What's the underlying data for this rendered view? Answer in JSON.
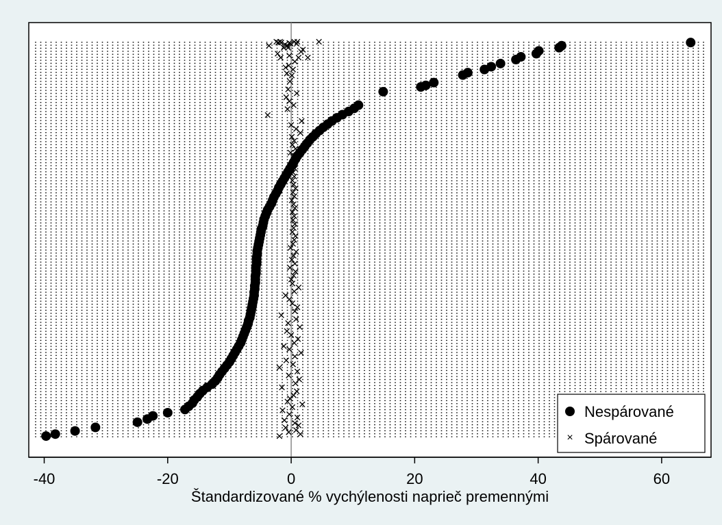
{
  "chart_data": {
    "type": "scatter",
    "title": "",
    "xlabel": "Štandardizované % vychýlenosti naprieč premennými",
    "ylabel": "",
    "xlim": [
      -42.5,
      68
    ],
    "ylim": [
      0,
      1
    ],
    "x_ticks": [
      -40,
      -20,
      0,
      20,
      40,
      60
    ],
    "x_tick_labels": [
      "-40",
      "-20",
      "0",
      "20",
      "40",
      "60"
    ],
    "reference_line_x": 0,
    "grid": "dotted vertical lines",
    "legend_position": "bottom-right",
    "series": [
      {
        "name": "Nespárované",
        "marker": "filled-circle",
        "color": "#000000",
        "x": [
          -39.7,
          -38.2,
          -35,
          -31.7,
          -24.9,
          -23.3,
          -22.4,
          -20,
          -17.2,
          -16.6,
          -16,
          -15.7,
          -15.2,
          -14.8,
          -14.3,
          -13.6,
          -12.8,
          -12.3,
          -11.9,
          -11.6,
          -11.2,
          -10.8,
          -10.4,
          -10,
          -9.7,
          -9.4,
          -9.1,
          -8.8,
          -8.5,
          -8.2,
          -8,
          -7.8,
          -7.6,
          -7.4,
          -7.2,
          -7,
          -6.9,
          -6.7,
          -6.6,
          -6.5,
          -6.4,
          -6.3,
          -6.2,
          -6.1,
          -6,
          -6,
          -5.9,
          -5.9,
          -5.8,
          -5.8,
          -5.8,
          -5.7,
          -5.7,
          -5.7,
          -5.6,
          -5.6,
          -5.6,
          -5.5,
          -5.5,
          -5.4,
          -5.3,
          -5.2,
          -5.1,
          -5,
          -4.9,
          -4.8,
          -4.6,
          -4.5,
          -4.4,
          -4.2,
          -4,
          -3.8,
          -3.5,
          -3.2,
          -3,
          -2.8,
          -2.5,
          -2.2,
          -2,
          -1.7,
          -1.4,
          -1.1,
          -0.8,
          -0.5,
          -0.2,
          0.1,
          0.4,
          0.7,
          1,
          1.4,
          1.8,
          2.2,
          2.6,
          3,
          3.5,
          4,
          4.6,
          5.2,
          5.9,
          6.6,
          7.4,
          8.3,
          9.3,
          10.2,
          10.9,
          14.9,
          21,
          21.8,
          23.1,
          27.8,
          28.6,
          31.3,
          32.4,
          33.9,
          36.4,
          37.2,
          39.7,
          40.1,
          43.4,
          43.8,
          64.7
        ],
        "y": [
          0.005,
          0.01,
          0.018,
          0.027,
          0.04,
          0.048,
          0.056,
          0.064,
          0.072,
          0.08,
          0.088,
          0.096,
          0.104,
          0.112,
          0.12,
          0.128,
          0.136,
          0.144,
          0.152,
          0.16,
          0.168,
          0.176,
          0.184,
          0.192,
          0.2,
          0.208,
          0.216,
          0.224,
          0.232,
          0.24,
          0.248,
          0.256,
          0.264,
          0.272,
          0.28,
          0.288,
          0.296,
          0.304,
          0.312,
          0.32,
          0.328,
          0.336,
          0.344,
          0.352,
          0.36,
          0.368,
          0.376,
          0.384,
          0.392,
          0.4,
          0.408,
          0.416,
          0.424,
          0.432,
          0.44,
          0.448,
          0.456,
          0.464,
          0.472,
          0.48,
          0.488,
          0.496,
          0.504,
          0.512,
          0.52,
          0.528,
          0.536,
          0.544,
          0.552,
          0.56,
          0.568,
          0.576,
          0.584,
          0.592,
          0.6,
          0.608,
          0.616,
          0.624,
          0.632,
          0.64,
          0.648,
          0.656,
          0.664,
          0.672,
          0.68,
          0.688,
          0.696,
          0.704,
          0.712,
          0.72,
          0.728,
          0.736,
          0.744,
          0.752,
          0.76,
          0.768,
          0.776,
          0.784,
          0.792,
          0.8,
          0.808,
          0.816,
          0.824,
          0.832,
          0.84,
          0.874,
          0.886,
          0.89,
          0.897,
          0.916,
          0.922,
          0.93,
          0.937,
          0.945,
          0.955,
          0.962,
          0.97,
          0.977,
          0.985,
          0.99,
          0.998
        ]
      },
      {
        "name": "Spárované",
        "marker": "x",
        "color": "#000000",
        "x": [
          -1.9,
          1.5,
          -0.4,
          0.8,
          -0.9,
          1.2,
          0.6,
          -1.1,
          1.0,
          -0.3,
          -1.4,
          0.2,
          1.8,
          -0.6,
          -0.2,
          0.4,
          0.9,
          -1.5,
          0.7,
          1.3,
          -0.4,
          1.0,
          -1.9,
          0.3,
          -0.8,
          0.6,
          1.6,
          -0.3,
          -1.2,
          0.5,
          1.1,
          0.0,
          -0.7,
          1.4,
          -0.5,
          0.8,
          -1.6,
          0.6,
          1.0,
          0.2,
          -0.3,
          -0.9,
          0.5,
          1.2,
          0.2,
          0.0,
          0.4,
          0.7,
          -0.2,
          0.6,
          0.1,
          0.4,
          0.8,
          -0.1,
          0.3,
          0.5,
          0.7,
          0.2,
          0.4,
          0.6,
          0.3,
          0.5,
          0.2,
          0.6,
          0.4,
          0.1,
          0.5,
          0.3,
          0.7,
          0.4,
          0.2,
          0.5,
          0.3,
          0.6,
          0.1,
          0.4,
          0.3,
          -0.1,
          0.7,
          0.2,
          0.5,
          0.1,
          1.5,
          0.8,
          0.0,
          1.7,
          -3.8,
          -0.6,
          0.4,
          -0.3,
          -0.8,
          0.9,
          -0.5,
          -0.2,
          0.1,
          -0.7,
          0.3,
          -0.9,
          -0.4,
          0.6,
          -1.7,
          2.7,
          -0.3,
          -2.2,
          1.6,
          1.9,
          -1.2,
          -0.5,
          -3.6,
          -0.6,
          -1.0,
          -0.1,
          0.9,
          -0.3,
          -1.6,
          -2.1,
          1.0,
          0.5,
          -1.8,
          -2.4,
          4.5,
          1.2
        ],
        "y": [
          0.005,
          0.01,
          0.015,
          0.02,
          0.026,
          0.032,
          0.038,
          0.045,
          0.052,
          0.06,
          0.07,
          0.078,
          0.085,
          0.092,
          0.1,
          0.108,
          0.118,
          0.128,
          0.138,
          0.148,
          0.158,
          0.168,
          0.178,
          0.186,
          0.196,
          0.206,
          0.215,
          0.224,
          0.232,
          0.24,
          0.25,
          0.26,
          0.27,
          0.28,
          0.29,
          0.3,
          0.31,
          0.32,
          0.33,
          0.34,
          0.35,
          0.36,
          0.37,
          0.38,
          0.39,
          0.4,
          0.41,
          0.42,
          0.43,
          0.44,
          0.45,
          0.46,
          0.47,
          0.48,
          0.49,
          0.5,
          0.51,
          0.52,
          0.53,
          0.54,
          0.55,
          0.56,
          0.57,
          0.58,
          0.59,
          0.6,
          0.61,
          0.62,
          0.63,
          0.64,
          0.65,
          0.66,
          0.67,
          0.68,
          0.69,
          0.7,
          0.71,
          0.72,
          0.73,
          0.74,
          0.75,
          0.76,
          0.77,
          0.78,
          0.79,
          0.8,
          0.815,
          0.83,
          0.84,
          0.85,
          0.86,
          0.87,
          0.88,
          0.9,
          0.915,
          0.92,
          0.93,
          0.935,
          0.94,
          0.95,
          0.96,
          0.96,
          0.965,
          0.97,
          0.975,
          0.98,
          0.985,
          0.985,
          0.99,
          0.99,
          0.993,
          0.995,
          0.995,
          0.997,
          0.998,
          0.998,
          1.0,
          1.0,
          1.0,
          1.0,
          1.0,
          0.96
        ]
      }
    ]
  }
}
